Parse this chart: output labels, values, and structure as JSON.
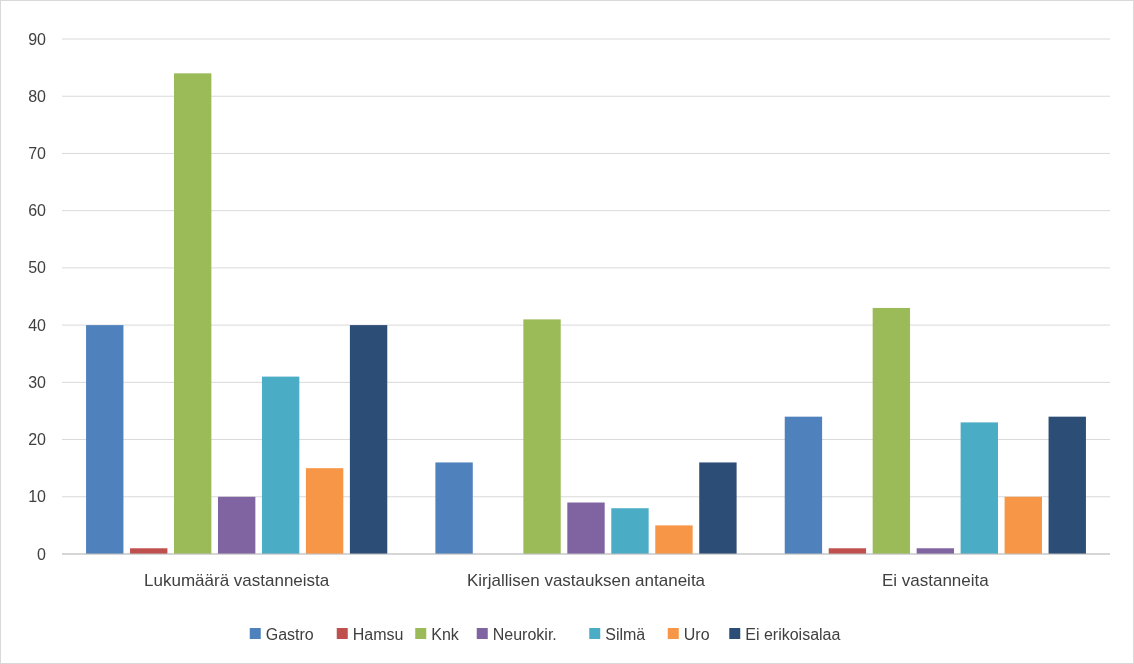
{
  "chart_data": {
    "type": "bar",
    "categories": [
      "Lukumäärä vastanneista",
      "Kirjallisen vastauksen antaneita",
      "Ei vastanneita"
    ],
    "series": [
      {
        "name": "Gastro",
        "color": "#4f81bd",
        "values": [
          40,
          16,
          24
        ]
      },
      {
        "name": "Hamsu",
        "color": "#c0504d",
        "values": [
          1,
          0,
          1
        ]
      },
      {
        "name": "Knk",
        "color": "#9bbb59",
        "values": [
          84,
          41,
          43
        ]
      },
      {
        "name": "Neurokir.",
        "color": "#8064a2",
        "values": [
          10,
          9,
          1
        ]
      },
      {
        "name": "Silmä",
        "color": "#4bacc6",
        "values": [
          31,
          8,
          23
        ]
      },
      {
        "name": "Uro",
        "color": "#f79646",
        "values": [
          15,
          5,
          10
        ]
      },
      {
        "name": "Ei erikoisalaa",
        "color": "#2c4d75",
        "values": [
          40,
          16,
          24
        ]
      }
    ],
    "ylim": [
      0,
      90
    ],
    "yticks": [
      0,
      10,
      20,
      30,
      40,
      50,
      60,
      70,
      80,
      90
    ],
    "grid": "y",
    "legend": "bottom"
  }
}
